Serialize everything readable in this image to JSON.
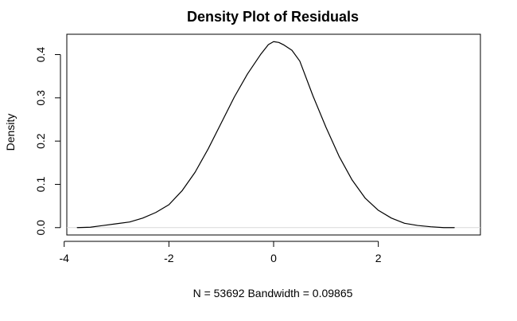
{
  "chart_data": {
    "type": "line",
    "title": "Density Plot of Residuals",
    "xlabel": "N = 53692   Bandwidth = 0.09865",
    "ylabel": "Density",
    "xlim": [
      -4,
      3.5
    ],
    "ylim": [
      0,
      0.43
    ],
    "x_ticks": [
      -4,
      -2,
      0,
      2
    ],
    "x_tick_labels": [
      "-4",
      "-2",
      "0",
      "2"
    ],
    "y_ticks": [
      0.0,
      0.1,
      0.2,
      0.3,
      0.4
    ],
    "y_tick_labels": [
      "0.0",
      "0.1",
      "0.2",
      "0.3",
      "0.4"
    ],
    "grid": false,
    "series": [
      {
        "color": "#000000",
        "x": [
          -3.75,
          -3.5,
          -3.25,
          -3.0,
          -2.75,
          -2.5,
          -2.25,
          -2.0,
          -1.75,
          -1.5,
          -1.25,
          -1.0,
          -0.75,
          -0.5,
          -0.25,
          -0.1,
          0.0,
          0.1,
          0.2,
          0.35,
          0.5,
          0.75,
          1.0,
          1.25,
          1.5,
          1.75,
          2.0,
          2.25,
          2.5,
          2.75,
          3.0,
          3.25,
          3.45
        ],
        "y": [
          0.0,
          0.001,
          0.005,
          0.009,
          0.013,
          0.022,
          0.035,
          0.053,
          0.085,
          0.128,
          0.182,
          0.242,
          0.302,
          0.355,
          0.4,
          0.423,
          0.43,
          0.428,
          0.422,
          0.41,
          0.385,
          0.305,
          0.232,
          0.165,
          0.11,
          0.068,
          0.04,
          0.022,
          0.01,
          0.005,
          0.002,
          0.0,
          0.0
        ]
      }
    ]
  }
}
